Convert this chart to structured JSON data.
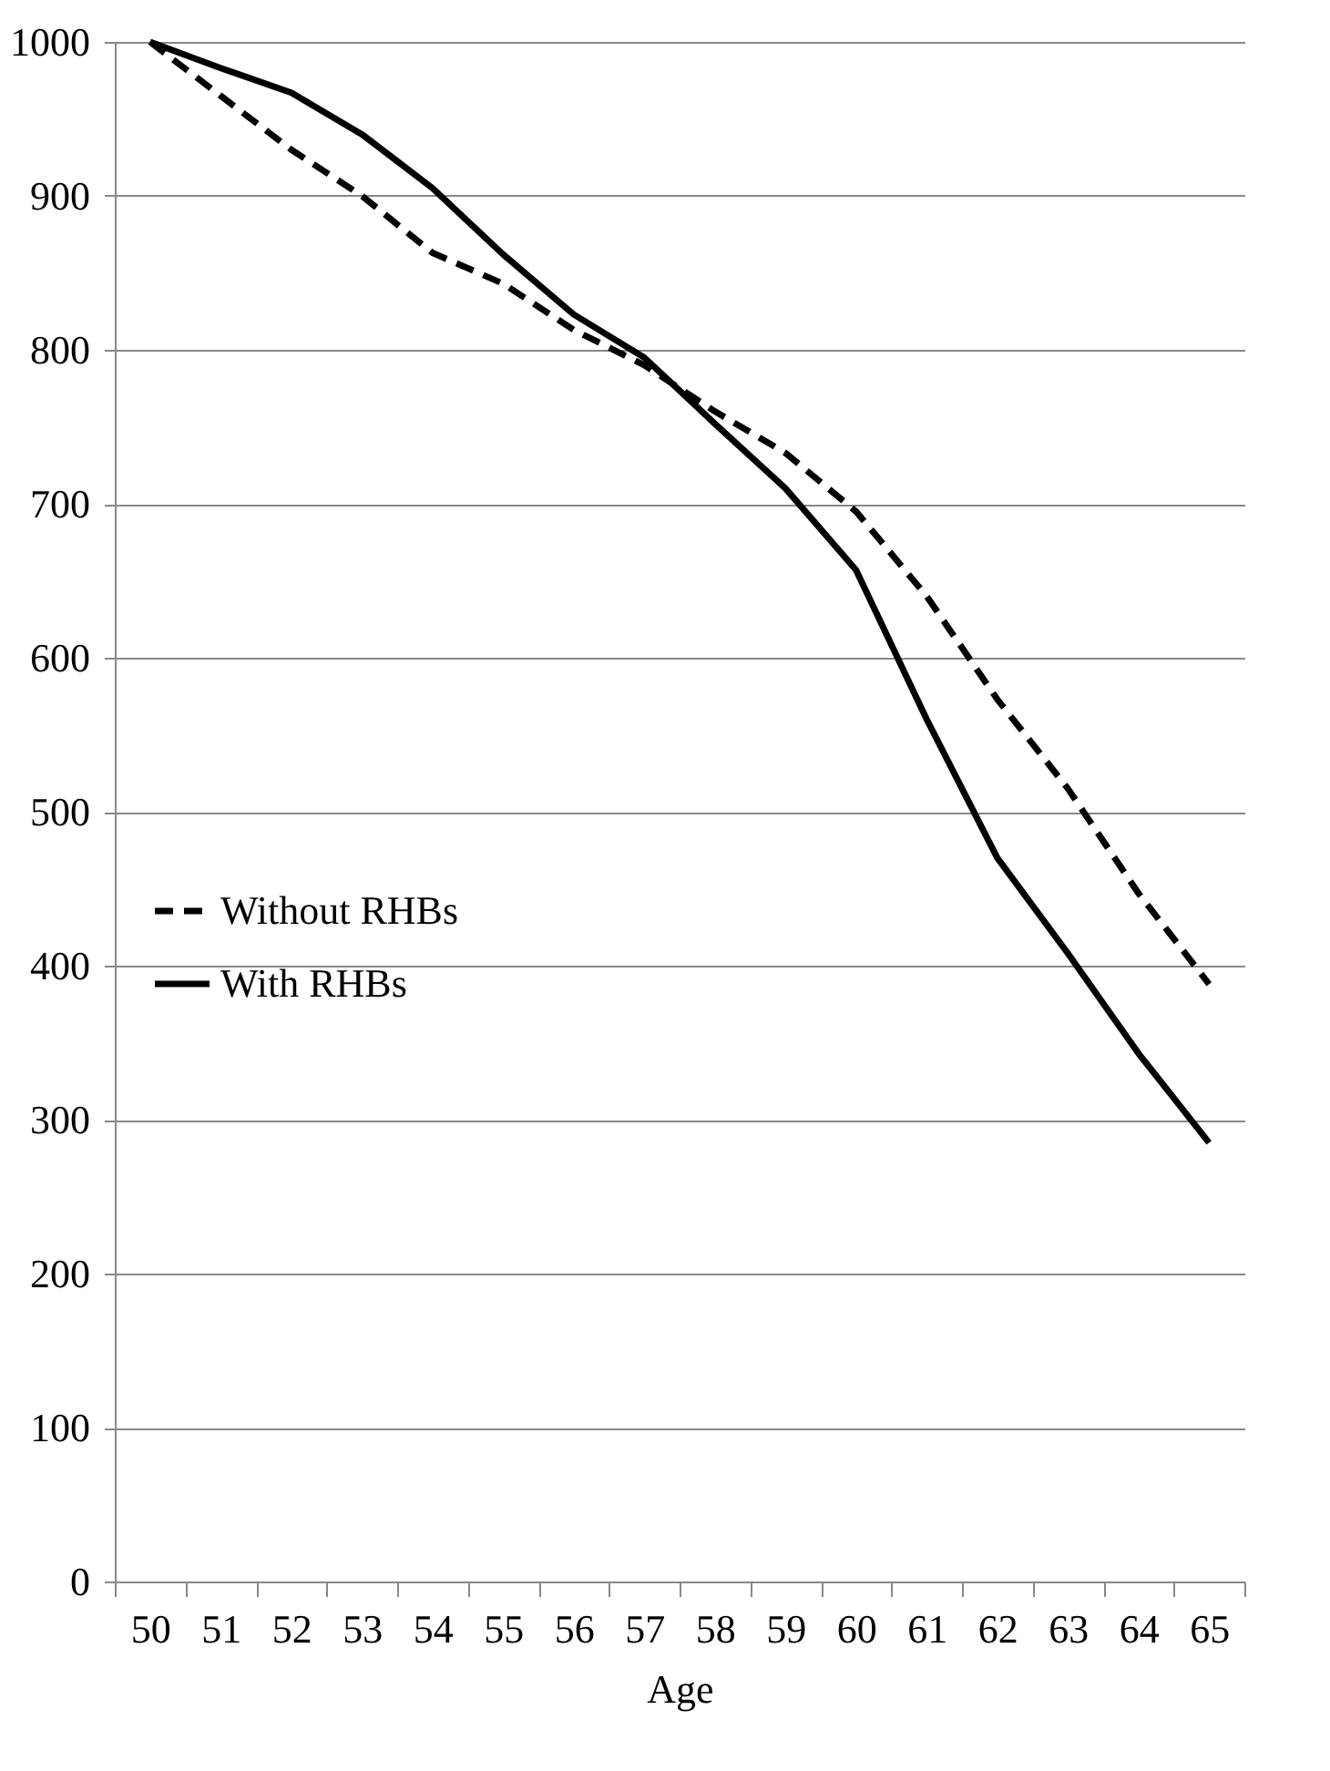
{
  "chart_data": {
    "type": "line",
    "xlabel": "Age",
    "categories": [
      "50",
      "51",
      "52",
      "53",
      "54",
      "55",
      "56",
      "57",
      "58",
      "59",
      "60",
      "61",
      "62",
      "63",
      "64",
      "65"
    ],
    "series": [
      {
        "name": "Without RHBs",
        "color": "#000000",
        "line_style": "dashed",
        "values": [
          1000,
          965,
          930,
          900,
          863,
          843,
          813,
          790,
          760,
          733,
          695,
          640,
          573,
          515,
          447,
          388
        ]
      },
      {
        "name": "With RHBs",
        "color": "#000000",
        "line_style": "solid",
        "values": [
          1000,
          983,
          967,
          940,
          905,
          862,
          823,
          795,
          752,
          710,
          657,
          560,
          470,
          408,
          343,
          285
        ]
      }
    ],
    "ylim": [
      0,
      1000
    ],
    "yticks": [
      0,
      100,
      200,
      300,
      400,
      500,
      600,
      700,
      800,
      900,
      1000
    ],
    "grid": "y",
    "legend": "left",
    "marker": "none"
  }
}
